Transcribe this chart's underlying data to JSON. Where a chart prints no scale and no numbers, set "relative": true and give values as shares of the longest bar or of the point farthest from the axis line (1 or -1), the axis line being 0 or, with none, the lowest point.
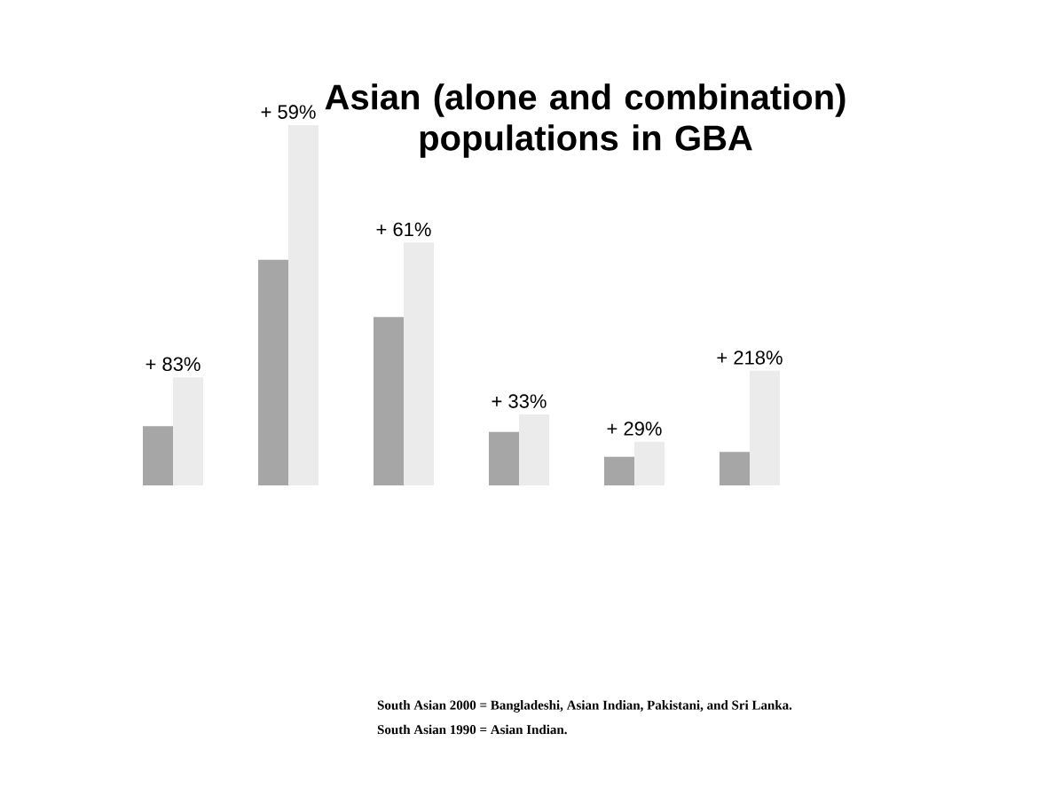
{
  "chart_data": {
    "type": "bar",
    "title": "Asian (alone and combination) populations in GBA",
    "relative": true,
    "categories": [
      null,
      null,
      null,
      null,
      null,
      null
    ],
    "series": [
      {
        "color": "#a6a6a6",
        "values": [
          0.164,
          0.626,
          0.467,
          0.148,
          0.079,
          0.093
        ]
      },
      {
        "color": "#ebebeb",
        "values": [
          0.3,
          1.0,
          0.674,
          0.197,
          0.121,
          0.318
        ]
      }
    ],
    "annotations": [
      "+ 83%",
      "+ 59%",
      "+ 61%",
      "+ 33%",
      "+ 29%",
      "+ 218%",
      "South Asian 2000 = Bangladeshi, Asian Indian, Pakistani, and Sri Lanka.",
      "South Asian 1990 = Asian Indian."
    ]
  }
}
